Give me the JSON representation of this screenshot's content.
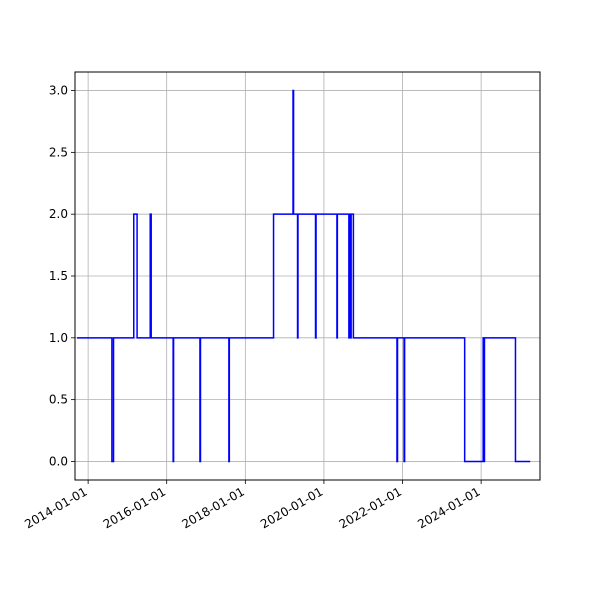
{
  "chart_data": {
    "type": "line",
    "drawstyle": "steps-post",
    "title": "",
    "xlabel": "",
    "ylabel": "",
    "grid": true,
    "x_axis_type": "date",
    "xlim": [
      "2013-09-01",
      "2025-07-01"
    ],
    "ylim": [
      -0.15,
      3.15
    ],
    "x_ticks": [
      "2014-01-01",
      "2016-01-01",
      "2018-01-01",
      "2020-01-01",
      "2022-01-01",
      "2024-01-01"
    ],
    "y_ticks": [
      "0.0",
      "0.5",
      "1.0",
      "1.5",
      "2.0",
      "2.5",
      "3.0"
    ],
    "series": [
      {
        "color": "#0000ff",
        "x": [
          "2013-09-20",
          "2014-08-10",
          "2014-08-25",
          "2015-03-01",
          "2015-04-01",
          "2015-08-01",
          "2015-08-10",
          "2016-03-01",
          "2016-03-05",
          "2016-10-01",
          "2016-10-20",
          "2016-11-05",
          "2016-11-10",
          "2017-02-10",
          "2017-02-15",
          "2017-06-01",
          "2017-08-01",
          "2017-08-05",
          "2018-09-20",
          "2019-03-20",
          "2019-03-25",
          "2019-05-01",
          "2019-05-05",
          "2019-10-15",
          "2019-10-20",
          "2020-05-01",
          "2020-05-05",
          "2020-08-20",
          "2020-08-25",
          "2020-09-05",
          "2020-09-10",
          "2020-10-01",
          "2020-10-05",
          "2021-11-10",
          "2021-11-15",
          "2022-01-15",
          "2022-01-20",
          "2023-08-01",
          "2024-01-20",
          "2024-01-25",
          "2024-02-01",
          "2024-02-05",
          "2024-11-15",
          "2025-04-01"
        ],
        "y": [
          1,
          0,
          1,
          2,
          1,
          2,
          1,
          0,
          1,
          1,
          1,
          0,
          1,
          1,
          1,
          1,
          0,
          1,
          2,
          3,
          2,
          1,
          2,
          1,
          2,
          1,
          2,
          1,
          2,
          1,
          2,
          1,
          1,
          0,
          1,
          0,
          1,
          0,
          1,
          0,
          1,
          1,
          0,
          0
        ]
      }
    ]
  }
}
